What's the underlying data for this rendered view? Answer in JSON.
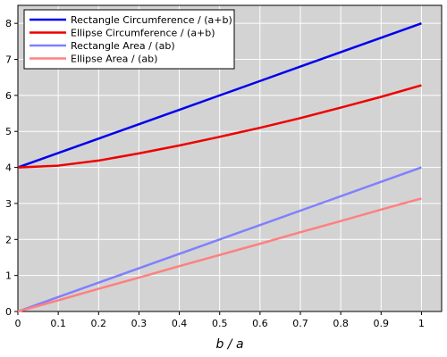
{
  "chart_data": {
    "type": "line",
    "xlabel": "b / a",
    "ylabel": "",
    "xlim": [
      0,
      1.05
    ],
    "ylim": [
      0,
      8.5
    ],
    "xticks": [
      "0",
      "0.1",
      "0.2",
      "0.3",
      "0.4",
      "0.5",
      "0.6",
      "0.7",
      "0.8",
      "0.9",
      "1"
    ],
    "yticks": [
      "0",
      "1",
      "2",
      "3",
      "4",
      "5",
      "6",
      "7",
      "8"
    ],
    "grid": true,
    "legend_position": "top-left",
    "background_color": "#d3d3d3",
    "x": [
      0,
      0.1,
      0.2,
      0.3,
      0.4,
      0.5,
      0.6,
      0.7,
      0.8,
      0.9,
      1
    ],
    "series": [
      {
        "name": "Rectangle Circumference / (a+b)",
        "color": "#0000ee",
        "values": [
          4,
          4.4,
          4.8,
          5.2,
          5.6,
          6.0,
          6.4,
          6.8,
          7.2,
          7.6,
          8.0
        ]
      },
      {
        "name": "Ellipse Circumference / (a+b)",
        "color": "#ee0000",
        "values": [
          4.0,
          4.05,
          4.19,
          4.39,
          4.61,
          4.85,
          5.1,
          5.37,
          5.66,
          5.96,
          6.28
        ]
      },
      {
        "name": "Rectangle Area / (ab)",
        "color": "#8080ff",
        "values": [
          0,
          0.4,
          0.8,
          1.2,
          1.6,
          2.0,
          2.4,
          2.8,
          3.2,
          3.6,
          4.0
        ]
      },
      {
        "name": "Ellipse Area / (ab)",
        "color": "#ff8080",
        "values": [
          0,
          0.31,
          0.63,
          0.94,
          1.26,
          1.57,
          1.88,
          2.2,
          2.51,
          2.83,
          3.14
        ]
      }
    ]
  }
}
